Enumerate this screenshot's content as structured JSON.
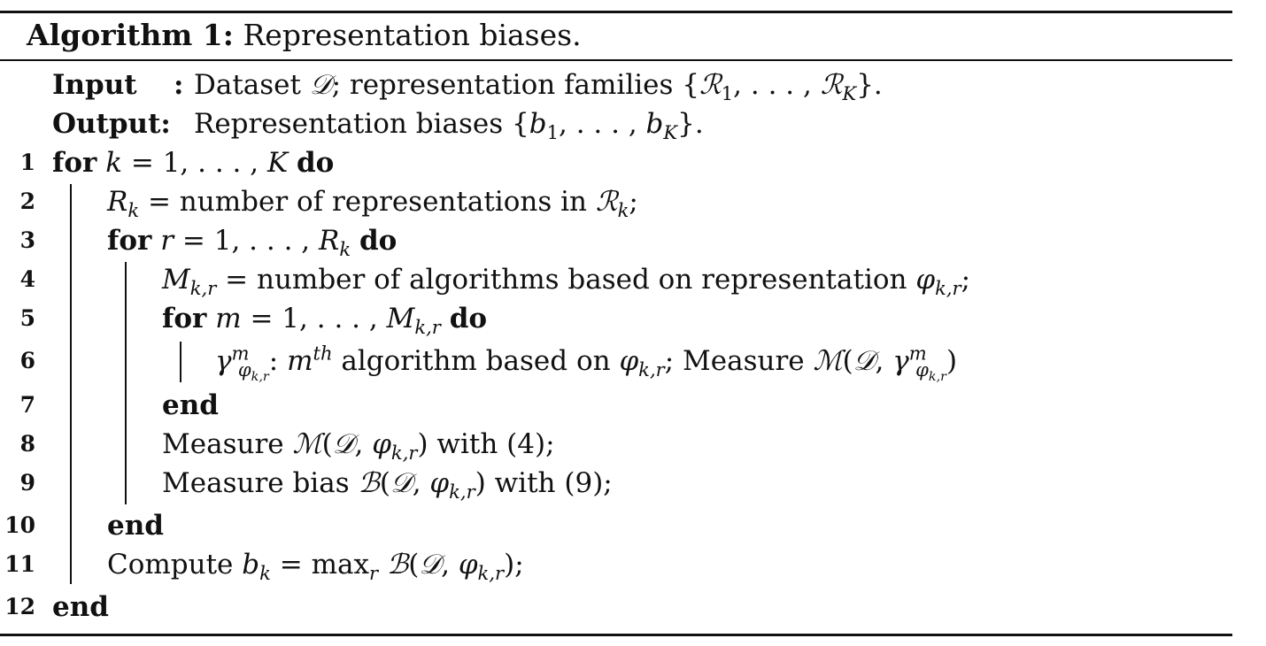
{
  "algorithm": {
    "caption_label": "Algorithm 1:",
    "caption_text": "Representation biases.",
    "io": [
      {
        "label": "Input",
        "sep": ":",
        "text": "Dataset 𝒟; representation families {ℛ₁, . . . , ℛ_K}."
      },
      {
        "label": "Output:",
        "sep": "",
        "text": "Representation biases {b₁, . . . , b_K}."
      }
    ],
    "lines": [
      {
        "n": "1",
        "indent": 0,
        "text": "for k = 1, . . . , K do"
      },
      {
        "n": "2",
        "indent": 1,
        "text": "R_k = number of representations in ℛ_k;"
      },
      {
        "n": "3",
        "indent": 1,
        "text": "for r = 1, . . . , R_k do"
      },
      {
        "n": "4",
        "indent": 2,
        "text": "M_{k,r} = number of algorithms based on representation φ_{k,r};"
      },
      {
        "n": "5",
        "indent": 2,
        "text": "for m = 1, . . . , M_{k,r} do"
      },
      {
        "n": "6",
        "indent": 3,
        "text": "γ^m_{φ_{k,r}}: m^{th} algorithm based on φ_{k,r}; Measure ℳ(𝒟, γ^m_{φ_{k,r}})"
      },
      {
        "n": "7",
        "indent": 2,
        "text": "end"
      },
      {
        "n": "8",
        "indent": 2,
        "text": "Measure ℳ(𝒟, φ_{k,r}) with (4);"
      },
      {
        "n": "9",
        "indent": 2,
        "text": "Measure bias ℬ(𝒟, φ_{k,r}) with (9);"
      },
      {
        "n": "10",
        "indent": 1,
        "text": "end"
      },
      {
        "n": "11",
        "indent": 1,
        "text": "Compute b_k = max_r ℬ(𝒟, φ_{k,r});"
      },
      {
        "n": "12",
        "indent": 0,
        "text": "end"
      }
    ]
  }
}
